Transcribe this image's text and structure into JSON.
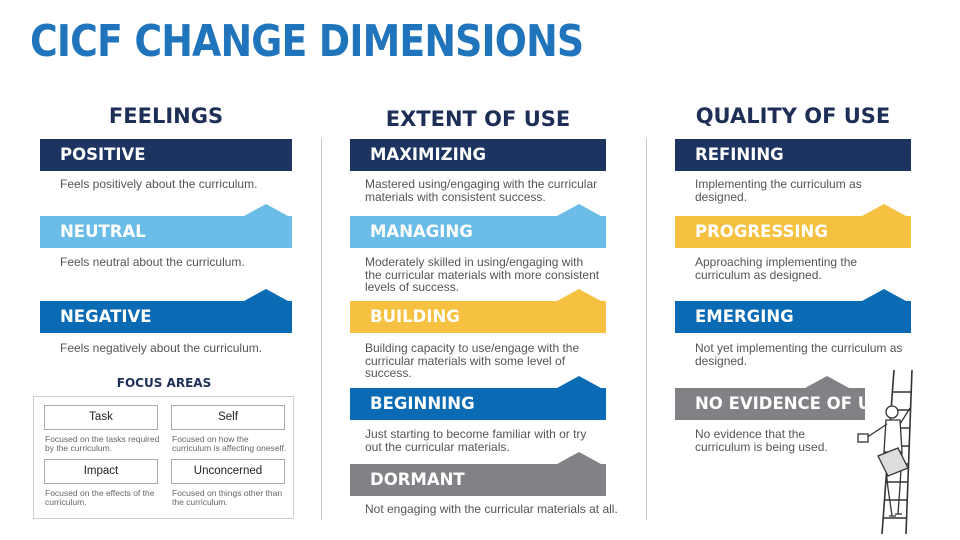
{
  "title": "CICF CHANGE DIMENSIONS",
  "columns": [
    {
      "heading": "FEELINGS",
      "levels": [
        {
          "label": "POSITIVE",
          "description": "Feels positively about the curriculum."
        },
        {
          "label": "NEUTRAL",
          "description": "Feels neutral about the curriculum."
        },
        {
          "label": "NEGATIVE",
          "description": "Feels negatively about the curriculum."
        }
      ]
    },
    {
      "heading": "EXTENT OF USE",
      "levels": [
        {
          "label": "MAXIMIZING",
          "description": "Mastered using/engaging with the curricular materials with consistent success."
        },
        {
          "label": "MANAGING",
          "description": "Moderately skilled in using/engaging with the curricular materials with more consistent levels of success."
        },
        {
          "label": "BUILDING",
          "description": "Building capacity to use/engage with the curricular materials with some level of success."
        },
        {
          "label": "BEGINNING",
          "description": "Just starting to become familiar with or try out the curricular materials."
        },
        {
          "label": "DORMANT",
          "description": "Not engaging with the curricular materials at all."
        }
      ]
    },
    {
      "heading": "QUALITY OF USE",
      "levels": [
        {
          "label": "REFINING",
          "description": "Implementing the curriculum as designed."
        },
        {
          "label": "PROGRESSING",
          "description": "Approaching implementing the curriculum as designed."
        },
        {
          "label": "EMERGING",
          "description": "Not yet implementing the curriculum as designed."
        },
        {
          "label": "NO EVIDENCE OF USE",
          "description": "No evidence that the curriculum is being used."
        }
      ]
    }
  ],
  "focus_areas": {
    "title": "FOCUS AREAS",
    "items": [
      {
        "label": "Task",
        "description": "Focused on the tasks required by the curriculum."
      },
      {
        "label": "Self",
        "description": "Focused on how the curriculum is affecting oneself."
      },
      {
        "label": "Impact",
        "description": "Focused on the effects of the curriculum."
      },
      {
        "label": "Unconcerned",
        "description": "Focused on things other than the curriculum."
      }
    ]
  },
  "colors": {
    "title": "#1f74bc",
    "heading": "#1e2f57",
    "navy": "#1d3461",
    "light_blue": "#6bbde8",
    "blue": "#0b6ab4",
    "gold": "#f6c141",
    "grey": "#808285"
  },
  "icons": [
    "climbing-ladder-figure-icon"
  ]
}
